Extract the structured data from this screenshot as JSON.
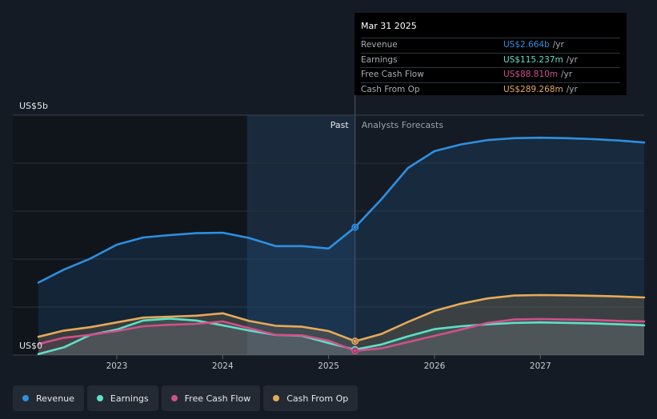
{
  "chart_data": {
    "type": "line",
    "y_axis": {
      "top_label": "US$5b",
      "bottom_label": "US$0",
      "ylim": [
        0,
        5000
      ]
    },
    "x_ticks": [
      "2023",
      "2024",
      "2025",
      "2026",
      "2027"
    ],
    "xlim": [
      2022.26,
      2027.98
    ],
    "past_label": "Past",
    "forecast_label": "Analysts Forecasts",
    "divider_x": 2025.25,
    "highlight_start_x": 2024.23,
    "series": [
      {
        "name": "Revenue",
        "color": "#2f8fe0",
        "fill": true,
        "x": [
          2022.26,
          2022.5,
          2022.75,
          2023.0,
          2023.25,
          2023.5,
          2023.75,
          2024.0,
          2024.25,
          2024.5,
          2024.75,
          2025.0,
          2025.25,
          2025.5,
          2025.75,
          2026.0,
          2026.25,
          2026.5,
          2026.75,
          2027.0,
          2027.25,
          2027.5,
          2027.75,
          2027.98
        ],
        "y": [
          1510,
          1780,
          2010,
          2300,
          2450,
          2500,
          2540,
          2550,
          2440,
          2270,
          2270,
          2220,
          2664,
          3250,
          3900,
          4250,
          4390,
          4480,
          4520,
          4530,
          4520,
          4500,
          4470,
          4430
        ]
      },
      {
        "name": "Earnings",
        "color": "#5ee0c8",
        "fill": false,
        "x": [
          2022.26,
          2022.5,
          2022.75,
          2023.0,
          2023.25,
          2023.5,
          2023.75,
          2024.0,
          2024.25,
          2024.5,
          2024.75,
          2025.0,
          2025.25,
          2025.5,
          2025.75,
          2026.0,
          2026.25,
          2026.5,
          2026.75,
          2027.0,
          2027.25,
          2027.5,
          2027.75,
          2027.98
        ],
        "y": [
          20,
          160,
          420,
          530,
          720,
          760,
          720,
          620,
          510,
          420,
          400,
          250,
          115,
          220,
          390,
          540,
          600,
          640,
          670,
          680,
          670,
          660,
          640,
          620
        ]
      },
      {
        "name": "Free Cash Flow",
        "color": "#d0508a",
        "fill": false,
        "x": [
          2022.26,
          2022.5,
          2022.75,
          2023.0,
          2023.25,
          2023.5,
          2023.75,
          2024.0,
          2024.25,
          2024.5,
          2024.75,
          2025.0,
          2025.25,
          2025.5,
          2025.75,
          2026.0,
          2026.25,
          2026.5,
          2026.75,
          2027.0,
          2027.25,
          2027.5,
          2027.75,
          2027.98
        ],
        "y": [
          230,
          360,
          420,
          500,
          600,
          630,
          650,
          700,
          560,
          420,
          410,
          300,
          89,
          140,
          270,
          400,
          530,
          670,
          740,
          750,
          740,
          730,
          710,
          700
        ]
      },
      {
        "name": "Cash From Op",
        "color": "#e6aa5a",
        "fill": false,
        "x": [
          2022.26,
          2022.5,
          2022.75,
          2023.0,
          2023.25,
          2023.5,
          2023.75,
          2024.0,
          2024.25,
          2024.5,
          2024.75,
          2025.0,
          2025.25,
          2025.5,
          2025.75,
          2026.0,
          2026.25,
          2026.5,
          2026.75,
          2027.0,
          2027.25,
          2027.5,
          2027.75,
          2027.98
        ],
        "y": [
          380,
          510,
          580,
          680,
          780,
          800,
          820,
          870,
          710,
          610,
          590,
          500,
          289,
          440,
          690,
          920,
          1070,
          1180,
          1240,
          1250,
          1245,
          1235,
          1220,
          1200
        ]
      }
    ]
  },
  "tooltip": {
    "date": "Mar 31 2025",
    "rows": [
      {
        "label": "Revenue",
        "value": "US$2.664b",
        "unit": "/yr",
        "color": "#2f8fe0"
      },
      {
        "label": "Earnings",
        "value": "US$115.237m",
        "unit": "/yr",
        "color": "#5ee0c8"
      },
      {
        "label": "Free Cash Flow",
        "value": "US$88.810m",
        "unit": "/yr",
        "color": "#d0508a"
      },
      {
        "label": "Cash From Op",
        "value": "US$289.268m",
        "unit": "/yr",
        "color": "#e6aa5a"
      }
    ]
  },
  "legend": [
    {
      "label": "Revenue",
      "color": "#2f8fe0"
    },
    {
      "label": "Earnings",
      "color": "#5ee0c8"
    },
    {
      "label": "Free Cash Flow",
      "color": "#d0508a"
    },
    {
      "label": "Cash From Op",
      "color": "#e6aa5a"
    }
  ]
}
